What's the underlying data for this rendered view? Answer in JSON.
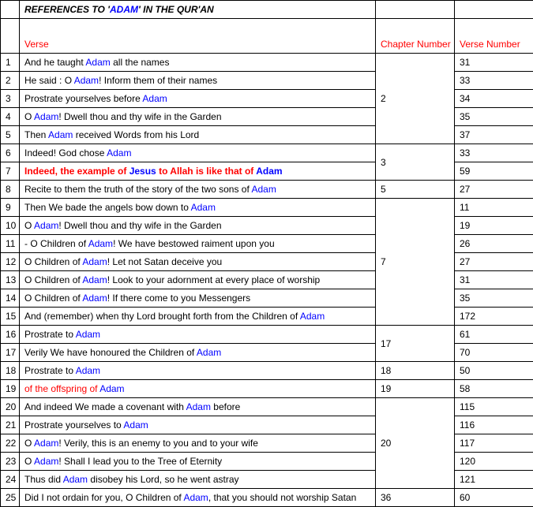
{
  "title_prefix": "REFERENCES TO '",
  "title_word": "ADAM",
  "title_suffix": "' IN THE QUR'AN",
  "headers": {
    "verse": "Verse",
    "chapter": "Chapter Number",
    "verse_num": "Verse Number"
  },
  "colors": {
    "highlight": "#0000ff",
    "red": "#ff0000",
    "text": "#000000",
    "border": "#000000",
    "bg": "#ffffff"
  },
  "font_size": 12,
  "hl": "Adam",
  "rows": [
    {
      "n": 1,
      "pre": "And he taught ",
      "mid": "Adam",
      "post": " all the names",
      "vn": 31
    },
    {
      "n": 2,
      "pre": "He said : O ",
      "mid": "Adam",
      "post": "! Inform them of their names",
      "vn": 33
    },
    {
      "n": 3,
      "pre": "Prostrate yourselves before ",
      "mid": "Adam",
      "post": "",
      "vn": 34
    },
    {
      "n": 4,
      "pre": "O ",
      "mid": "Adam",
      "post": "! Dwell thou and thy wife in the Garden",
      "vn": 35
    },
    {
      "n": 5,
      "pre": "Then ",
      "mid": "Adam",
      "post": " received Words from his Lord",
      "vn": 37
    },
    {
      "n": 6,
      "pre": "Indeed! God chose ",
      "mid": "Adam",
      "post": "",
      "vn": 33
    },
    {
      "n": 7,
      "pre": "Indeed, the example of ",
      "mid": "Jesus",
      "post_a": " to Allah is like that of ",
      "mid2": "Adam",
      "post": "",
      "vn": 59,
      "style": "red"
    },
    {
      "n": 8,
      "pre": "Recite to them the truth of the story of the two sons of ",
      "mid": "Adam",
      "post": "",
      "vn": 27
    },
    {
      "n": 9,
      "pre": "Then We bade the angels bow down to ",
      "mid": "Adam",
      "post": "",
      "vn": 11
    },
    {
      "n": 10,
      "pre": "O ",
      "mid": "Adam",
      "post": "! Dwell thou and thy wife in the Garden",
      "vn": 19
    },
    {
      "n": 11,
      "pre": "- O Children of ",
      "mid": "Adam",
      "post": "! We have bestowed raiment upon you",
      "vn": 26
    },
    {
      "n": 12,
      "pre": "O Children of ",
      "mid": "Adam",
      "post": "! Let not Satan deceive you",
      "vn": 27
    },
    {
      "n": 13,
      "pre": "O Children of ",
      "mid": "Adam",
      "post": "! Look to your adornment at every place of worship",
      "vn": 31
    },
    {
      "n": 14,
      "pre": "O Children of ",
      "mid": "Adam",
      "post": "! If there come to you Messengers",
      "vn": 35
    },
    {
      "n": 15,
      "pre": "And (remember) when thy Lord brought forth from the Children of ",
      "mid": "Adam",
      "post": "",
      "vn": 172
    },
    {
      "n": 16,
      "pre": "Prostrate to ",
      "mid": "Adam",
      "post": "",
      "vn": 61
    },
    {
      "n": 17,
      "pre": "Verily We have honoured the Children of ",
      "mid": "Adam",
      "post": "",
      "vn": 70
    },
    {
      "n": 18,
      "pre": "Prostrate to ",
      "mid": "Adam",
      "post": "",
      "vn": 50
    },
    {
      "n": 19,
      "pre": "of the offspring of ",
      "mid": "Adam",
      "post": "",
      "vn": 58,
      "style": "redthin"
    },
    {
      "n": 20,
      "pre": "And indeed We made a covenant with ",
      "mid": "Adam",
      "post": " before",
      "vn": 115
    },
    {
      "n": 21,
      "pre": "Prostrate yourselves to ",
      "mid": "Adam",
      "post": "",
      "vn": 116
    },
    {
      "n": 22,
      "pre": "O ",
      "mid": "Adam",
      "post": "! Verily, this is an enemy to you and to your wife",
      "vn": 117
    },
    {
      "n": 23,
      "pre": "O ",
      "mid": "Adam",
      "post": "! Shall I lead you to the Tree of Eternity",
      "vn": 120
    },
    {
      "n": 24,
      "pre": "Thus did ",
      "mid": "Adam",
      "post": " disobey his Lord, so he went astray",
      "vn": 121
    },
    {
      "n": 25,
      "pre": "Did I not ordain for you, O Children of ",
      "mid": "Adam",
      "post": ", that you should not worship Satan",
      "vn": 60
    }
  ],
  "chapter_groups": [
    {
      "ch": 2,
      "span": 5,
      "start": 1
    },
    {
      "ch": 3,
      "span": 2,
      "start": 6
    },
    {
      "ch": 5,
      "span": 1,
      "start": 8
    },
    {
      "ch": 7,
      "span": 7,
      "start": 9
    },
    {
      "ch": 17,
      "span": 2,
      "start": 16
    },
    {
      "ch": 18,
      "span": 1,
      "start": 18
    },
    {
      "ch": 19,
      "span": 1,
      "start": 19
    },
    {
      "ch": 20,
      "span": 5,
      "start": 20
    },
    {
      "ch": 36,
      "span": 1,
      "start": 25
    }
  ]
}
